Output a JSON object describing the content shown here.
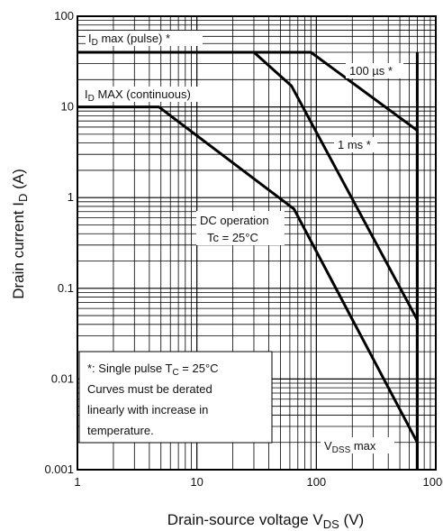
{
  "chart_data": {
    "type": "line",
    "title": "",
    "x_scale": "log",
    "y_scale": "log",
    "xlim": [
      1,
      1000
    ],
    "ylim": [
      0.001,
      100
    ],
    "xlabel": {
      "main": "Drain-source voltage",
      "symbol": "V",
      "sub": "DS",
      "unit": "(V)"
    },
    "ylabel": {
      "main": "Drain current",
      "symbol": "I",
      "sub": "D",
      "unit": "(A)"
    },
    "x_ticks": [
      {
        "value": 1,
        "label": "1"
      },
      {
        "value": 10,
        "label": "10"
      },
      {
        "value": 100,
        "label": "100"
      },
      {
        "value": 1000,
        "label": "1000"
      }
    ],
    "y_ticks": [
      {
        "value": 100,
        "label": "100"
      },
      {
        "value": 10,
        "label": "10"
      },
      {
        "value": 1,
        "label": "1"
      },
      {
        "value": 0.1,
        "label": "0.1"
      },
      {
        "value": 0.01,
        "label": "0.01"
      },
      {
        "value": 0.001,
        "label": "0.001"
      }
    ],
    "grid": true,
    "series": [
      {
        "x": [
          1,
          90,
          700,
          700
        ],
        "y": [
          40,
          40,
          5.5,
          0.001
        ]
      },
      {
        "x": [
          1,
          30,
          62,
          700
        ],
        "y": [
          40,
          40,
          17,
          0.045
        ]
      },
      {
        "x": [
          1,
          4.8,
          65,
          700
        ],
        "y": [
          10,
          10,
          0.75,
          0.002
        ]
      },
      {
        "x": [
          700,
          700
        ],
        "y": [
          0.001,
          40
        ]
      }
    ],
    "annotations": {
      "id_pulse": {
        "pre": "I",
        "sub": "D",
        "post": " max (pulse) *"
      },
      "id_cont": {
        "pre": "I",
        "sub": "D",
        "post": " MAX (continuous)"
      },
      "us100": "100 µs *",
      "ms1": "1 ms *",
      "dc_line1": "DC operation",
      "dc_line2": {
        "pre": "Tc = 25",
        "post": "°C"
      },
      "vdss": {
        "pre": "V",
        "sub": "DSS",
        "post": " max"
      }
    },
    "note": {
      "line1_pre": "*: Single pulse    T",
      "line1_sub": "C",
      "line1_post": " = 25°C",
      "line2": "Curves must be derated",
      "line3": "linearly with increase in",
      "line4": "temperature."
    }
  }
}
